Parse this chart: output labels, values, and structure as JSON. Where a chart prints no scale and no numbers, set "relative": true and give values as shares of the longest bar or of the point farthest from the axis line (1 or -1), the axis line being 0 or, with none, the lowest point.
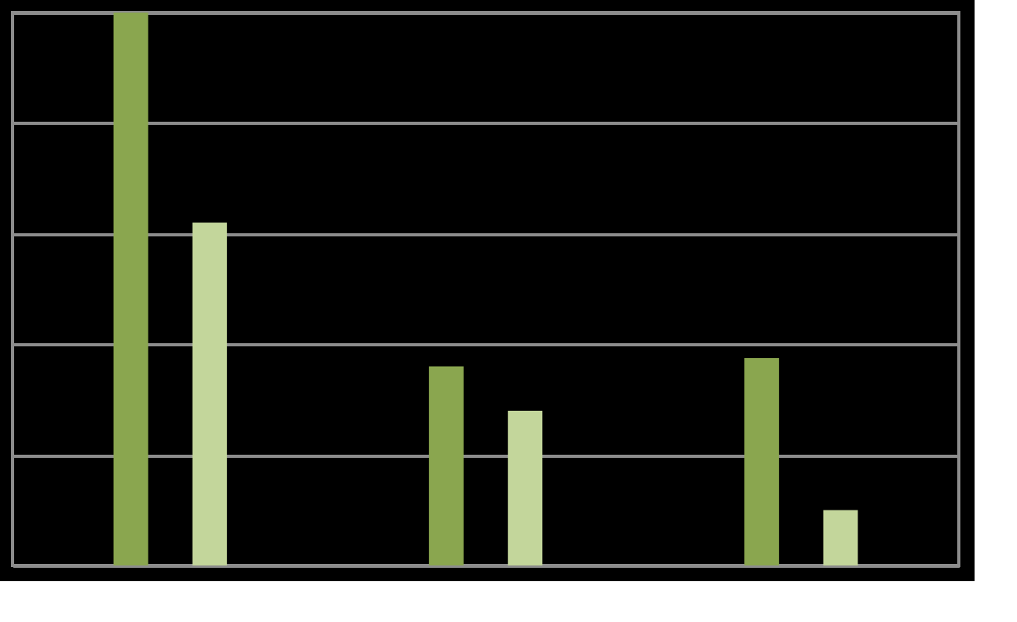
{
  "chart_data": {
    "type": "bar",
    "relative": true,
    "categories": [
      null,
      null,
      null
    ],
    "series": [
      {
        "color": "#8aa64f",
        "values": [
          1,
          0.36,
          0.375
        ]
      },
      {
        "color": "#c3d69b",
        "values": [
          0.62,
          0.28,
          0.1
        ]
      }
    ],
    "grid": "y",
    "legend": false
  }
}
